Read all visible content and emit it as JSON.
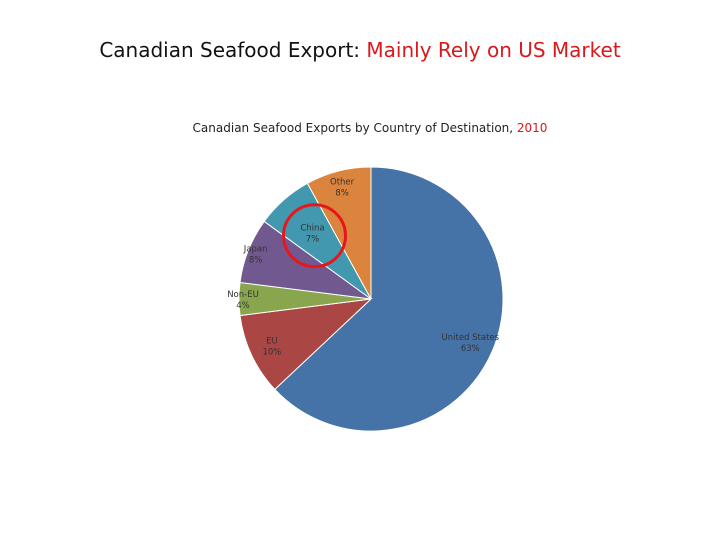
{
  "page": {
    "title_main": "Canadian Seafood Export:",
    "title_accent": "Mainly Rely on US Market"
  },
  "colors": {
    "accent": "#d9191c",
    "highlight_circle": "#e8161b"
  },
  "chart_data": {
    "type": "pie",
    "title": "Canadian Seafood Exports by Country of Destination,",
    "title_year": "2010",
    "slices": [
      {
        "name": "United States",
        "value": 63,
        "label": "63%",
        "color": "#4572a7"
      },
      {
        "name": "EU",
        "value": 10,
        "label": "10%",
        "color": "#aa4643"
      },
      {
        "name": "Non-EU",
        "value": 4,
        "label": "4%",
        "color": "#89a54e"
      },
      {
        "name": "Japan",
        "value": 8,
        "label": "8%",
        "color": "#71588f"
      },
      {
        "name": "China",
        "value": 7,
        "label": "7%",
        "color": "#4198af"
      },
      {
        "name": "Other",
        "value": 8,
        "label": "8%",
        "color": "#db843d"
      }
    ],
    "highlighted_slice": "China",
    "legend": "none"
  }
}
